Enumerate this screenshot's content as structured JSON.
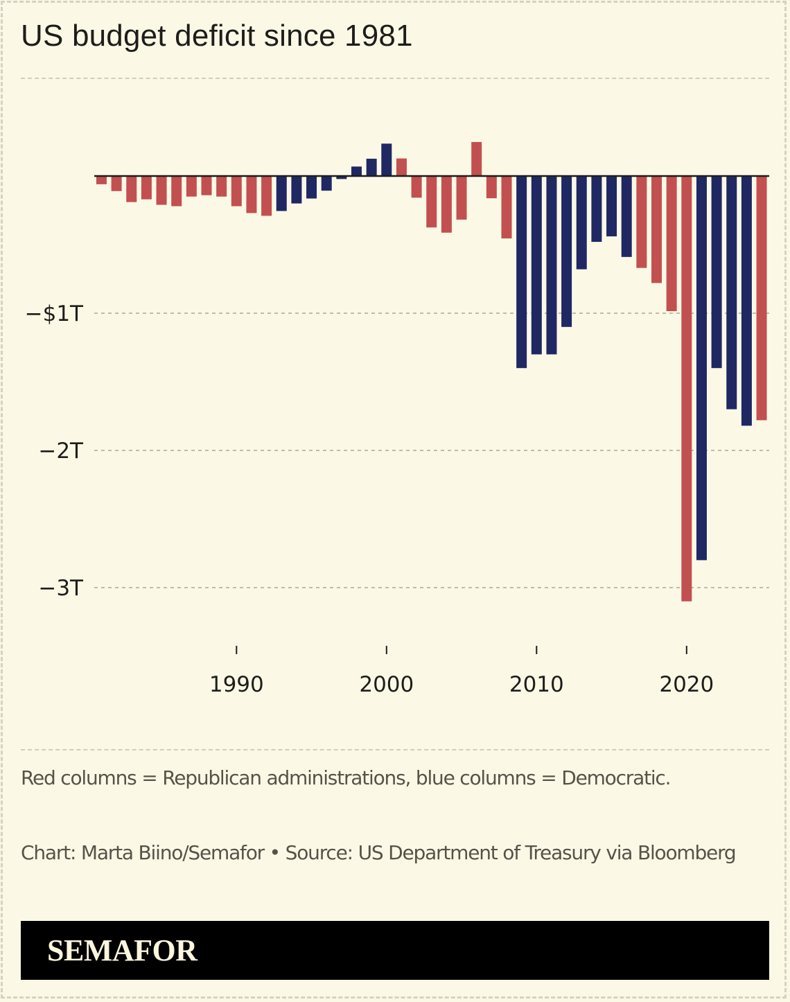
{
  "header": {
    "title": "US budget deficit since 1981"
  },
  "colors": {
    "background": "#fbf9e6",
    "republican": "#c25050",
    "democratic": "#1f2863",
    "zero_line": "#1d1d1b",
    "gridline": "#bdbbad"
  },
  "chart_data": {
    "type": "bar",
    "title": "US budget deficit since 1981",
    "xlabel": "",
    "ylabel": "",
    "ylim": [
      -3.4,
      0.7
    ],
    "y_unit": "trillions of US dollars",
    "grid": true,
    "y_ticks": [
      {
        "value": -1,
        "label": "−$1T"
      },
      {
        "value": -2,
        "label": "−2T"
      },
      {
        "value": -3,
        "label": "−3T"
      }
    ],
    "x_ticks": [
      {
        "value": 1990,
        "label": "1990"
      },
      {
        "value": 2000,
        "label": "2000"
      },
      {
        "value": 2010,
        "label": "2010"
      },
      {
        "value": 2020,
        "label": "2020"
      }
    ],
    "legend": [
      {
        "party": "R",
        "label": "Republican administrations",
        "color": "#c25050"
      },
      {
        "party": "D",
        "label": "Democratic",
        "color": "#1f2863"
      }
    ],
    "points": [
      {
        "year": 1981,
        "value": -0.06,
        "party": "R"
      },
      {
        "year": 1982,
        "value": -0.11,
        "party": "R"
      },
      {
        "year": 1983,
        "value": -0.19,
        "party": "R"
      },
      {
        "year": 1984,
        "value": -0.17,
        "party": "R"
      },
      {
        "year": 1985,
        "value": -0.21,
        "party": "R"
      },
      {
        "year": 1986,
        "value": -0.22,
        "party": "R"
      },
      {
        "year": 1987,
        "value": -0.15,
        "party": "R"
      },
      {
        "year": 1988,
        "value": -0.14,
        "party": "R"
      },
      {
        "year": 1989,
        "value": -0.15,
        "party": "R"
      },
      {
        "year": 1990,
        "value": -0.22,
        "party": "R"
      },
      {
        "year": 1991,
        "value": -0.27,
        "party": "R"
      },
      {
        "year": 1992,
        "value": -0.29,
        "party": "R"
      },
      {
        "year": 1993,
        "value": -0.255,
        "party": "D"
      },
      {
        "year": 1994,
        "value": -0.2,
        "party": "D"
      },
      {
        "year": 1995,
        "value": -0.164,
        "party": "D"
      },
      {
        "year": 1996,
        "value": -0.107,
        "party": "D"
      },
      {
        "year": 1997,
        "value": -0.022,
        "party": "D"
      },
      {
        "year": 1998,
        "value": 0.069,
        "party": "D"
      },
      {
        "year": 1999,
        "value": 0.126,
        "party": "D"
      },
      {
        "year": 2000,
        "value": 0.236,
        "party": "D"
      },
      {
        "year": 2001,
        "value": 0.128,
        "party": "R"
      },
      {
        "year": 2002,
        "value": -0.158,
        "party": "R"
      },
      {
        "year": 2003,
        "value": -0.375,
        "party": "R"
      },
      {
        "year": 2004,
        "value": -0.413,
        "party": "R"
      },
      {
        "year": 2005,
        "value": -0.318,
        "party": "R"
      },
      {
        "year": 2006,
        "value": 0.248,
        "party": "R"
      },
      {
        "year": 2007,
        "value": -0.162,
        "party": "R"
      },
      {
        "year": 2008,
        "value": -0.455,
        "party": "R"
      },
      {
        "year": 2009,
        "value": -1.4,
        "party": "D"
      },
      {
        "year": 2010,
        "value": -1.3,
        "party": "D"
      },
      {
        "year": 2011,
        "value": -1.3,
        "party": "D"
      },
      {
        "year": 2012,
        "value": -1.1,
        "party": "D"
      },
      {
        "year": 2013,
        "value": -0.68,
        "party": "D"
      },
      {
        "year": 2014,
        "value": -0.48,
        "party": "D"
      },
      {
        "year": 2015,
        "value": -0.44,
        "party": "D"
      },
      {
        "year": 2016,
        "value": -0.59,
        "party": "D"
      },
      {
        "year": 2017,
        "value": -0.67,
        "party": "R"
      },
      {
        "year": 2018,
        "value": -0.78,
        "party": "R"
      },
      {
        "year": 2019,
        "value": -0.985,
        "party": "R"
      },
      {
        "year": 2020,
        "value": -3.1,
        "party": "R"
      },
      {
        "year": 2021,
        "value": -2.8,
        "party": "D"
      },
      {
        "year": 2022,
        "value": -1.4,
        "party": "D"
      },
      {
        "year": 2023,
        "value": -1.7,
        "party": "D"
      },
      {
        "year": 2024,
        "value": -1.82,
        "party": "D"
      },
      {
        "year": 2025,
        "value": -1.78,
        "party": "R"
      }
    ]
  },
  "footer": {
    "caption": "Red columns = Republican administrations, blue columns = Democratic.",
    "credit": "Chart: Marta Biino/Semafor • Source: US Department of Treasury via Bloomberg",
    "brand": "SEMAFOR"
  }
}
